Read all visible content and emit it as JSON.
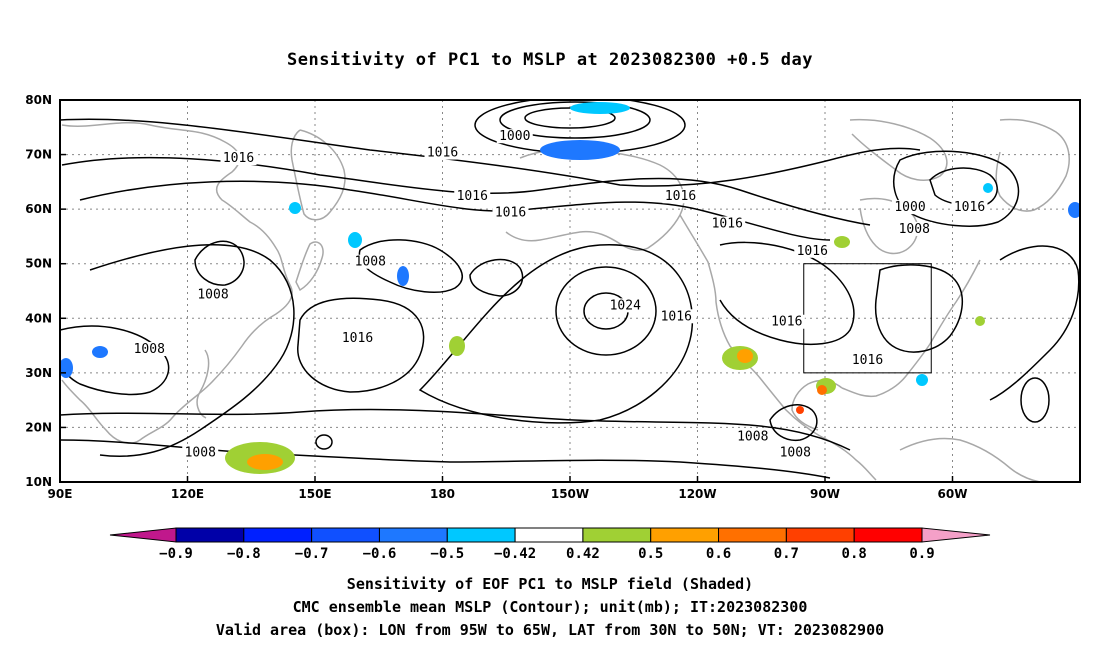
{
  "title": "Sensitivity of PC1 to MSLP at 2023082300 +0.5 day",
  "map": {
    "lon_labels": [
      "90E",
      "120E",
      "150E",
      "180",
      "150W",
      "120W",
      "90W",
      "60W"
    ],
    "lat_labels": [
      "80N",
      "70N",
      "60N",
      "50N",
      "40N",
      "30N",
      "20N",
      "10N"
    ],
    "contour_labels": [
      {
        "text": "1000",
        "lon": -163,
        "lat": 73
      },
      {
        "text": "1016",
        "lon": -180,
        "lat": 70
      },
      {
        "text": "1016",
        "lon": 132,
        "lat": 69
      },
      {
        "text": "1016",
        "lon": -173,
        "lat": 62
      },
      {
        "text": "1016",
        "lon": -164,
        "lat": 59
      },
      {
        "text": "1016",
        "lon": -124,
        "lat": 62
      },
      {
        "text": "1016",
        "lon": -113,
        "lat": 57
      },
      {
        "text": "1016",
        "lon": -93,
        "lat": 52
      },
      {
        "text": "1000",
        "lon": -70,
        "lat": 60
      },
      {
        "text": "1008",
        "lon": -69,
        "lat": 56
      },
      {
        "text": "1016",
        "lon": -56,
        "lat": 60
      },
      {
        "text": "1008",
        "lon": 163,
        "lat": 50
      },
      {
        "text": "1008",
        "lon": 126,
        "lat": 44
      },
      {
        "text": "1024",
        "lon": -137,
        "lat": 42
      },
      {
        "text": "1016",
        "lon": 160,
        "lat": 36
      },
      {
        "text": "1016",
        "lon": -125,
        "lat": 40
      },
      {
        "text": "1016",
        "lon": -99,
        "lat": 39
      },
      {
        "text": "1016",
        "lon": -80,
        "lat": 32
      },
      {
        "text": "1008",
        "lon": 111,
        "lat": 34
      },
      {
        "text": "1008",
        "lon": 123,
        "lat": 15
      },
      {
        "text": "1008",
        "lon": -107,
        "lat": 18
      },
      {
        "text": "1008",
        "lon": -97,
        "lat": 15
      }
    ],
    "valid_box": {
      "lon_min": -95,
      "lon_max": -65,
      "lat_min": 30,
      "lat_max": 50
    },
    "high_center_mb": 1024,
    "low_center_mb": 1000
  },
  "colorbar": {
    "labels": [
      "-0.9",
      "-0.8",
      "-0.7",
      "-0.6",
      "-0.5",
      "-0.42",
      "0.42",
      "0.5",
      "0.6",
      "0.7",
      "0.8",
      "0.9"
    ],
    "colors": [
      "#0000a8",
      "#0020ff",
      "#1050ff",
      "#1e78ff",
      "#00c8ff",
      "#ffffff",
      "#a0d034",
      "#ffa000",
      "#ff7000",
      "#ff4000",
      "#ff0000"
    ],
    "under_color": "#c0188c",
    "over_color": "#f4a0c8"
  },
  "captions": {
    "line1": "Sensitivity of EOF PC1 to MSLP field (Shaded)",
    "line2": "CMC ensemble mean MSLP (Contour); unit(mb); IT:2023082300",
    "line3": "Valid area (box): LON from 95W to 65W, LAT from 30N to 50N; VT: 2023082900"
  }
}
